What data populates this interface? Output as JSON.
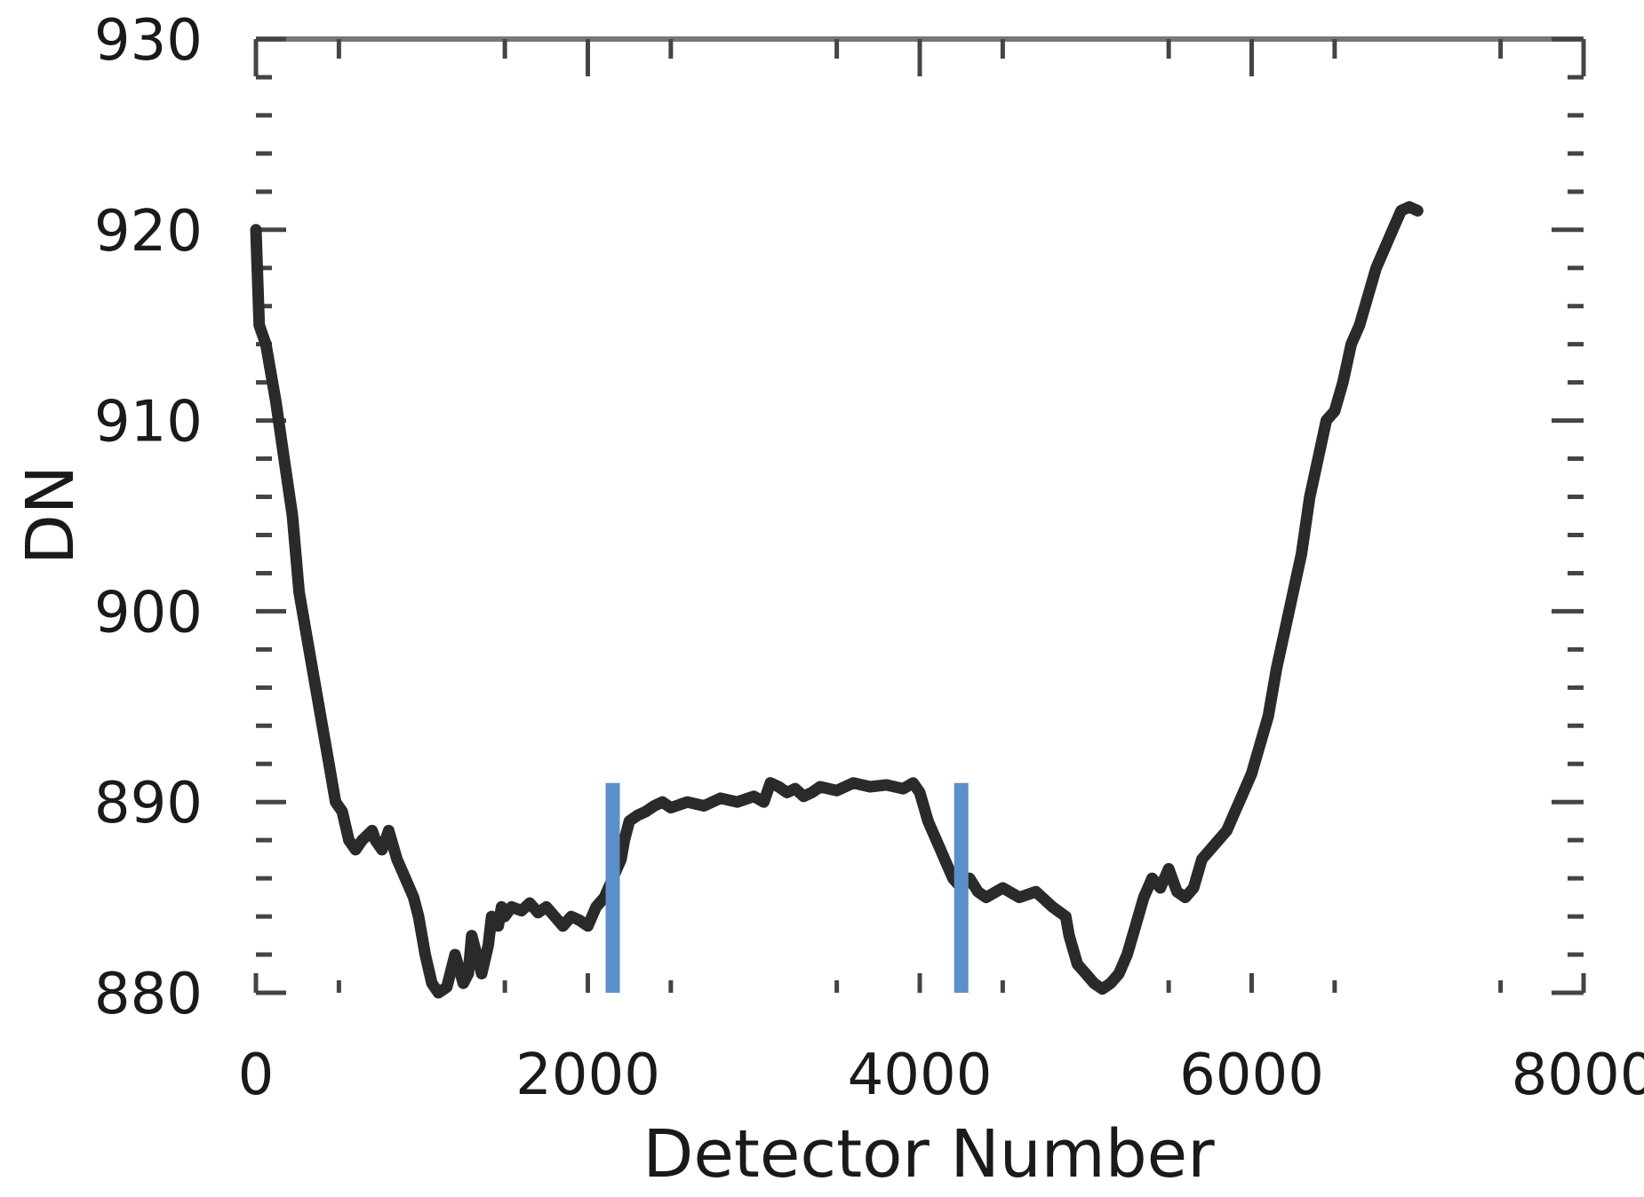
{
  "chart_data": {
    "type": "line",
    "title": "",
    "xlabel": "Detector Number",
    "ylabel": "DN",
    "xlim": [
      0,
      8000
    ],
    "ylim": [
      880,
      930
    ],
    "x_ticks": [
      0,
      2000,
      4000,
      6000,
      8000
    ],
    "y_ticks": [
      880,
      890,
      900,
      910,
      920,
      930
    ],
    "x_tick_labels": [
      "0",
      "2000",
      "4000",
      "6000",
      "8000"
    ],
    "y_tick_labels": [
      "880",
      "890",
      "900",
      "910",
      "920",
      "930"
    ],
    "grid": false,
    "legend": "none",
    "colors": {
      "series": "#2a2a2a",
      "markers": "#5b8fc9",
      "axis": "#777777"
    },
    "series": [
      {
        "x": [
          0,
          20,
          60,
          120,
          170,
          220,
          260,
          300,
          360,
          400,
          440,
          480,
          520,
          560,
          600,
          640,
          700,
          720,
          760,
          800,
          850,
          900,
          950,
          980,
          1000,
          1020,
          1060,
          1100,
          1150,
          1200,
          1250,
          1280,
          1300,
          1330,
          1360,
          1400,
          1420,
          1460,
          1480,
          1500,
          1540,
          1600,
          1650,
          1700,
          1750,
          1800,
          1850,
          1900,
          1950,
          2000,
          2050,
          2100,
          2150,
          2200,
          2220,
          2250,
          2300,
          2350,
          2400,
          2450,
          2500,
          2600,
          2700,
          2800,
          2900,
          3000,
          3060,
          3100,
          3150,
          3200,
          3250,
          3300,
          3350,
          3400,
          3500,
          3600,
          3700,
          3800,
          3900,
          3960,
          4000,
          4050,
          4100,
          4150,
          4200,
          4250,
          4300,
          4350,
          4400,
          4500,
          4600,
          4700,
          4800,
          4880,
          4900,
          4950,
          5000,
          5050,
          5100,
          5150,
          5200,
          5250,
          5300,
          5350,
          5400,
          5450,
          5500,
          5550,
          5600,
          5650,
          5700,
          5750,
          5800,
          5850,
          5900,
          5950,
          6000,
          6050,
          6100,
          6150,
          6200,
          6250,
          6300,
          6350,
          6400,
          6450,
          6500,
          6550,
          6600,
          6650,
          6700,
          6750,
          6800,
          6850,
          6900,
          6950,
          7000
        ],
        "y": [
          920,
          915,
          914,
          911,
          908,
          905,
          901,
          899,
          896,
          894,
          892,
          890,
          889.5,
          888,
          887.5,
          888,
          888.5,
          888,
          887.5,
          888.5,
          887,
          886,
          885,
          884,
          883,
          882,
          880.5,
          880,
          880.3,
          882,
          880.5,
          881,
          883,
          882,
          881,
          882.5,
          884,
          883.5,
          884.5,
          884,
          884.5,
          884.3,
          884.7,
          884.2,
          884.5,
          884,
          883.5,
          884,
          883.8,
          883.5,
          884.5,
          885,
          886,
          887,
          888,
          889,
          889.3,
          889.5,
          889.8,
          890,
          889.7,
          890,
          889.8,
          890.2,
          890,
          890.3,
          890,
          891,
          890.8,
          890.5,
          890.7,
          890.3,
          890.5,
          890.8,
          890.6,
          891,
          890.8,
          890.9,
          890.7,
          891,
          890.5,
          889,
          888,
          887,
          886,
          885.5,
          886,
          885.3,
          885,
          885.5,
          885,
          885.3,
          884.5,
          884,
          883,
          881.5,
          881,
          880.5,
          880.2,
          880.5,
          881,
          882,
          883.5,
          885,
          886,
          885.5,
          886.5,
          885.3,
          885,
          885.5,
          887,
          887.5,
          888,
          888.5,
          889.5,
          890.5,
          891.5,
          893,
          894.5,
          897,
          899,
          901,
          903,
          906,
          908,
          910,
          910.5,
          912,
          914,
          915,
          916.5,
          918,
          919,
          920,
          921,
          921.2,
          921
        ]
      }
    ],
    "vertical_markers": [
      {
        "x": 2150,
        "y_top": 891
      },
      {
        "x": 4250,
        "y_top": 891
      }
    ]
  }
}
